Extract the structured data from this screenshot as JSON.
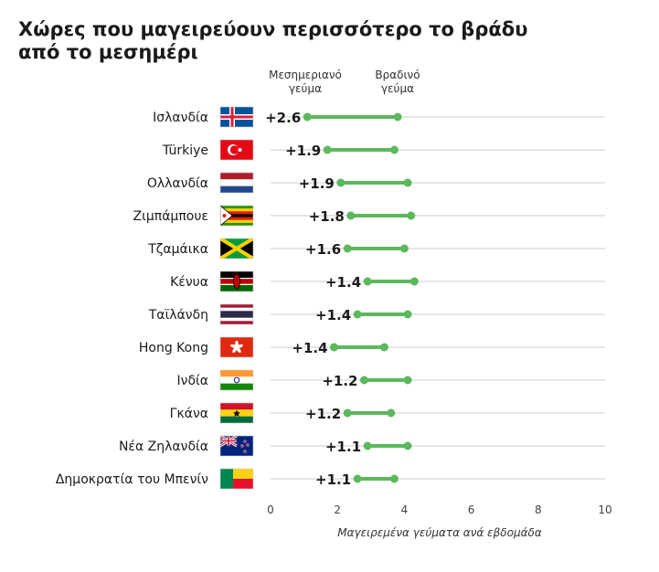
{
  "chart_data": {
    "type": "dumbbell",
    "title": "Χώρες που μαγειρεύουν περισσότερο το βράδυ από το μεσημέρι",
    "legend": {
      "start_line1": "Μεσημεριανό",
      "start_line2": "γεύμα",
      "end_line1": "Βραδινό",
      "end_line2": "γεύμα"
    },
    "xlabel": "Μαγειρεμένα γεύματα ανά εβδομάδα",
    "xlim": [
      0,
      10
    ],
    "xticks": [
      "0",
      "2",
      "4",
      "6",
      "8",
      "10"
    ],
    "grid": true,
    "colors": {
      "accent": "#5cb85c",
      "grid": "#e6e6e6"
    },
    "rows": [
      {
        "country": "Ισλανδία",
        "flag": "iceland-flag",
        "diff": "+2.6",
        "lunch": 1.1,
        "dinner": 3.8
      },
      {
        "country": "Türkiye",
        "flag": "turkey-flag",
        "diff": "+1.9",
        "lunch": 1.7,
        "dinner": 3.7
      },
      {
        "country": "Ολλανδία",
        "flag": "netherlands-flag",
        "diff": "+1.9",
        "lunch": 2.1,
        "dinner": 4.1
      },
      {
        "country": "Ζιμπάμπουε",
        "flag": "zimbabwe-flag",
        "diff": "+1.8",
        "lunch": 2.4,
        "dinner": 4.2
      },
      {
        "country": "Τζαμάικα",
        "flag": "jamaica-flag",
        "diff": "+1.6",
        "lunch": 2.3,
        "dinner": 4.0
      },
      {
        "country": "Κένυα",
        "flag": "kenya-flag",
        "diff": "+1.4",
        "lunch": 2.9,
        "dinner": 4.3
      },
      {
        "country": "Ταϊλάνδη",
        "flag": "thailand-flag",
        "diff": "+1.4",
        "lunch": 2.6,
        "dinner": 4.1
      },
      {
        "country": "Hong Kong",
        "flag": "hong-kong-flag",
        "diff": "+1.4",
        "lunch": 1.9,
        "dinner": 3.4
      },
      {
        "country": "Ινδία",
        "flag": "india-flag",
        "diff": "+1.2",
        "lunch": 2.8,
        "dinner": 4.1
      },
      {
        "country": "Γκάνα",
        "flag": "ghana-flag",
        "diff": "+1.2",
        "lunch": 2.3,
        "dinner": 3.6
      },
      {
        "country": "Νέα Ζηλανδία",
        "flag": "new-zealand-flag",
        "diff": "+1.1",
        "lunch": 2.9,
        "dinner": 4.1
      },
      {
        "country": "Δημοκρατία του Μπενίν",
        "flag": "benin-flag",
        "diff": "+1.1",
        "lunch": 2.6,
        "dinner": 3.7
      }
    ]
  }
}
